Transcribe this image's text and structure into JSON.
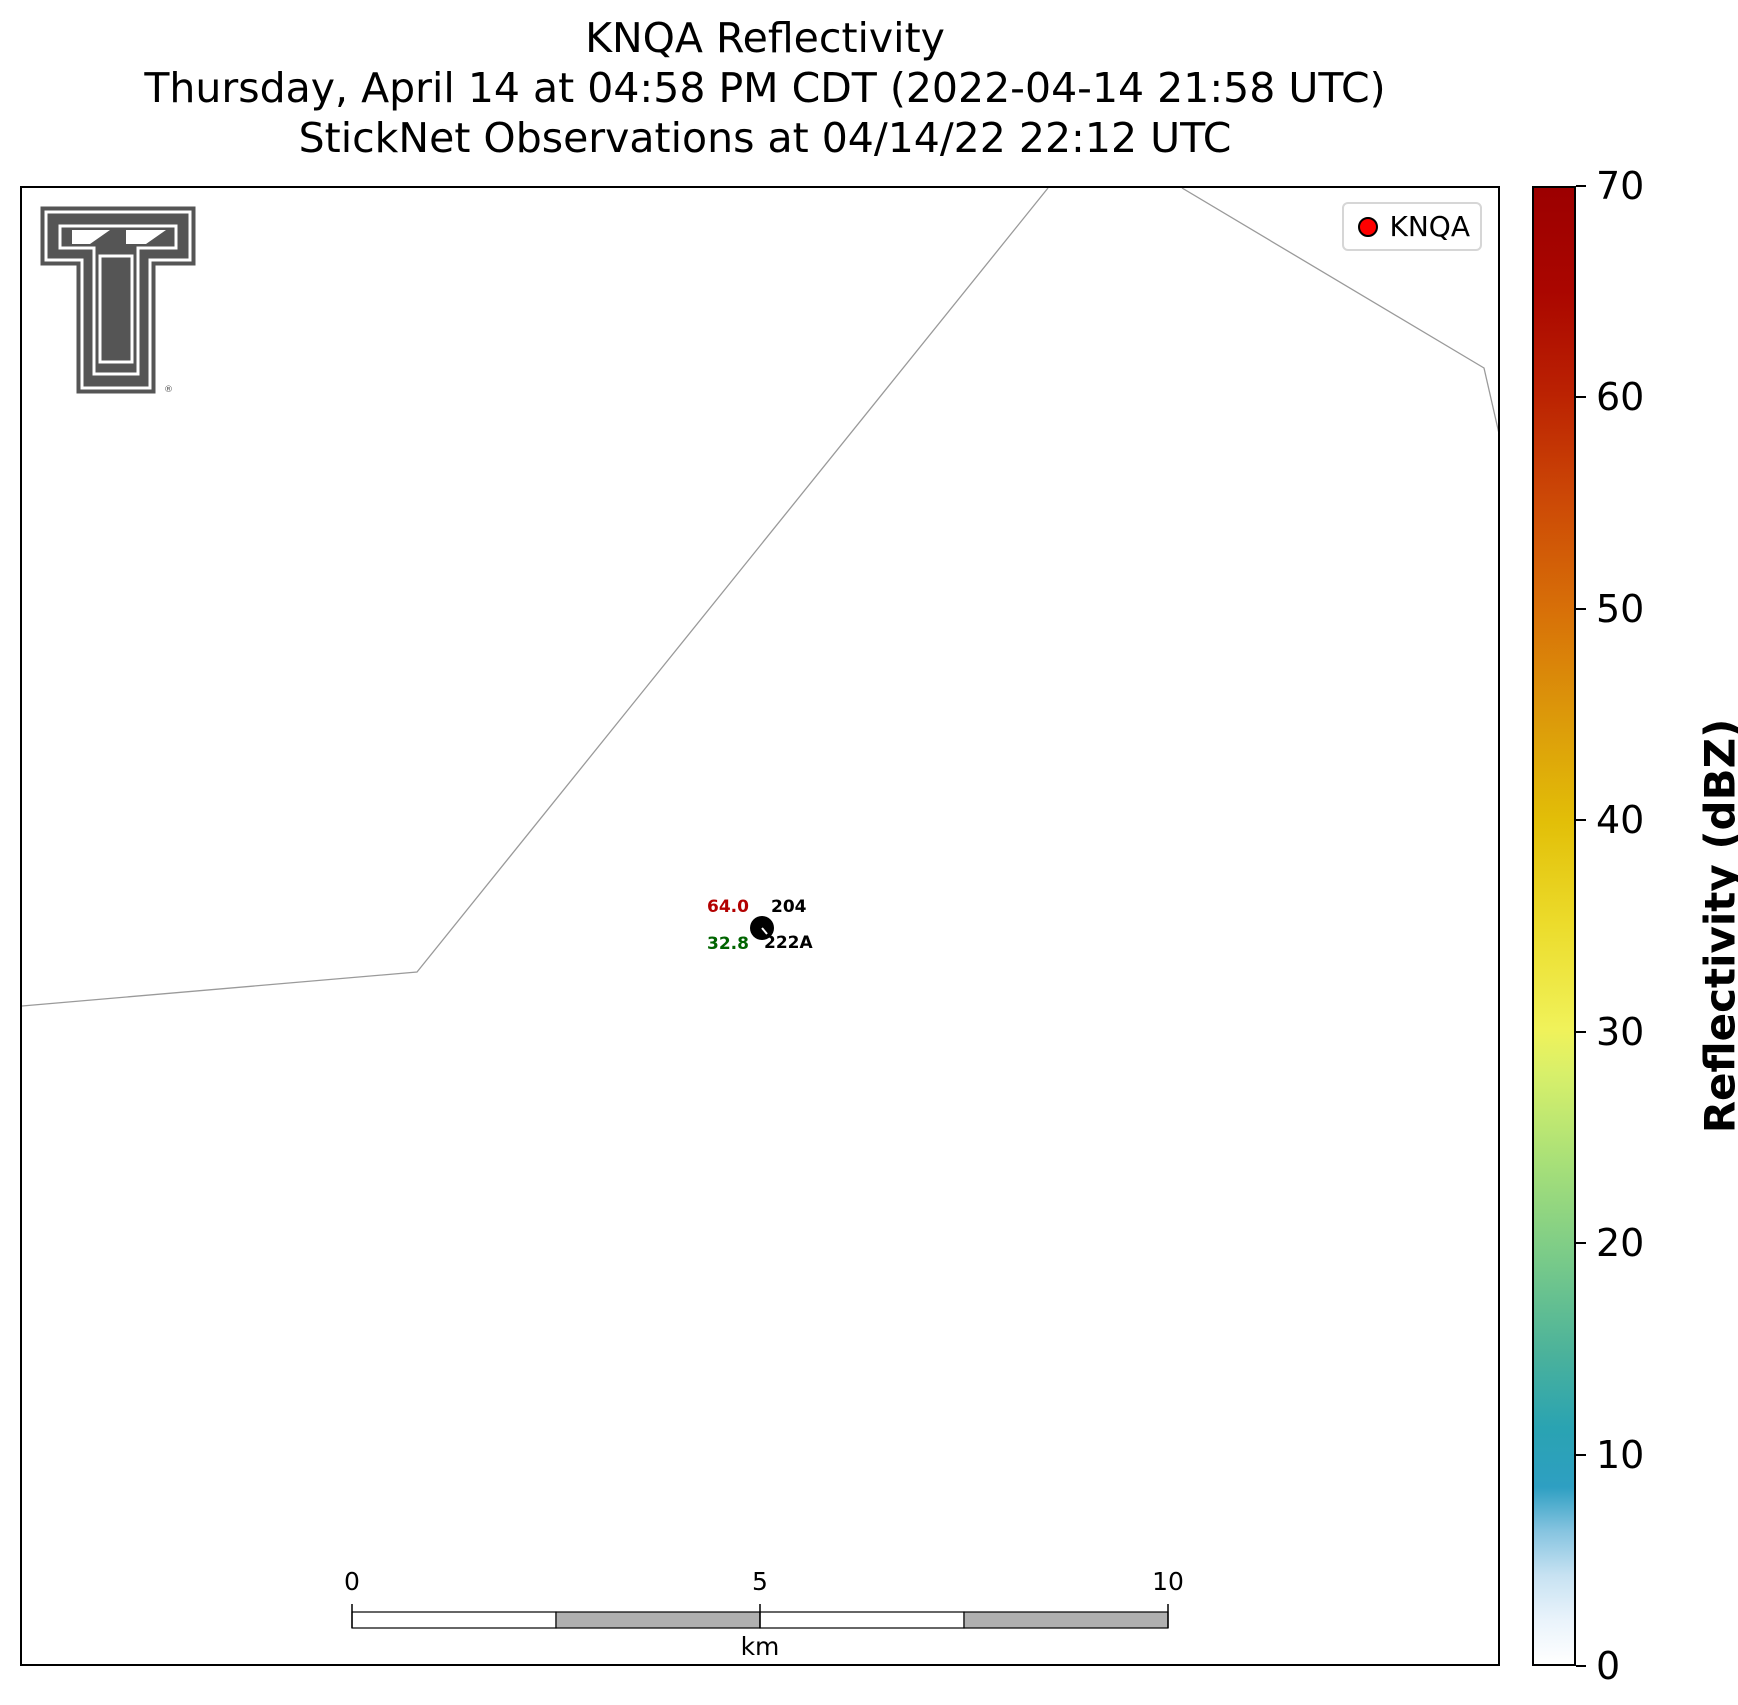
{
  "title": {
    "line1": "KNQA Reflectivity",
    "line2": "Thursday, April 14 at 04:58 PM CDT (2022-04-14 21:58 UTC)",
    "line3": "StickNet Observations at 04/14/22 22:12 UTC"
  },
  "legend": {
    "label": "KNQA",
    "marker_color": "#ff0000"
  },
  "logo": {
    "name": "double-T logo",
    "mark": "®"
  },
  "station": {
    "id": "204",
    "sub_id": "222A",
    "temperature": "64.0",
    "dewpoint": "32.8",
    "temperature_color": "#b30000",
    "dewpoint_color": "#006400"
  },
  "scale_bar": {
    "ticks": [
      "0",
      "5",
      "10"
    ],
    "unit": "km"
  },
  "colorbar": {
    "label": "Reflectivity (dBZ)",
    "ticks": [
      "0",
      "10",
      "20",
      "30",
      "40",
      "50",
      "60",
      "70"
    ],
    "range": [
      0,
      70
    ],
    "colors": [
      "#ffffff",
      "#2e9fc2",
      "#76c98a",
      "#e8f560",
      "#e2bf08",
      "#d87208",
      "#bb2202",
      "#9c0000"
    ]
  }
}
